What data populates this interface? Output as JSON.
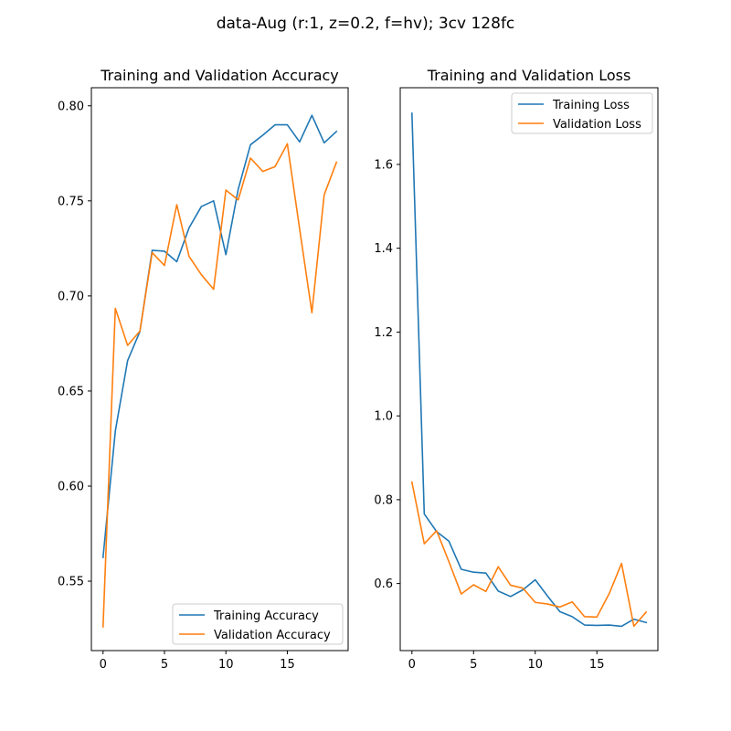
{
  "figure": {
    "suptitle": "data-Aug (r:1, z=0.2, f=hv); 3cv 128fc"
  },
  "chart_data": [
    {
      "type": "line",
      "title": "Training and Validation Accuracy",
      "xlabel": "",
      "ylabel": "",
      "xlim": [
        -0.95,
        19.95
      ],
      "ylim": [
        0.5135,
        0.8095
      ],
      "xticks": [
        0,
        5,
        10,
        15
      ],
      "yticks": [
        0.55,
        0.6,
        0.65,
        0.7,
        0.75,
        0.8
      ],
      "xtick_labels": [
        "0",
        "5",
        "10",
        "15"
      ],
      "ytick_labels": [
        "0.55",
        "0.60",
        "0.65",
        "0.70",
        "0.75",
        "0.80"
      ],
      "legend_position": "lower right",
      "grid": false,
      "x": [
        0,
        1,
        2,
        3,
        4,
        5,
        6,
        7,
        8,
        9,
        10,
        11,
        12,
        13,
        14,
        15,
        16,
        17,
        18,
        19
      ],
      "series": [
        {
          "name": "Training Accuracy",
          "color": "#1f77b4",
          "values": [
            0.5625,
            0.629,
            0.666,
            0.6813,
            0.724,
            0.7235,
            0.718,
            0.7358,
            0.747,
            0.75,
            0.7217,
            0.756,
            0.7795,
            0.7845,
            0.79,
            0.79,
            0.781,
            0.795,
            0.7805,
            0.7865
          ]
        },
        {
          "name": "Validation Accuracy",
          "color": "#ff7f0e",
          "values": [
            0.526,
            0.6935,
            0.674,
            0.6815,
            0.7228,
            0.716,
            0.748,
            0.7208,
            0.7112,
            0.7035,
            0.7557,
            0.7505,
            0.7725,
            0.7655,
            0.768,
            0.78,
            0.7353,
            0.6912,
            0.7532,
            0.7703
          ]
        }
      ]
    },
    {
      "type": "line",
      "title": "Training and Validation Loss",
      "xlabel": "",
      "ylabel": "",
      "xlim": [
        -0.95,
        19.95
      ],
      "ylim": [
        0.44,
        1.783
      ],
      "xticks": [
        0,
        5,
        10,
        15
      ],
      "yticks": [
        0.6,
        0.8,
        1.0,
        1.2,
        1.4,
        1.6
      ],
      "xtick_labels": [
        "0",
        "5",
        "10",
        "15"
      ],
      "ytick_labels": [
        "0.6",
        "0.8",
        "1.0",
        "1.2",
        "1.4",
        "1.6"
      ],
      "legend_position": "upper right",
      "grid": false,
      "x": [
        0,
        1,
        2,
        3,
        4,
        5,
        6,
        7,
        8,
        9,
        10,
        11,
        12,
        13,
        14,
        15,
        16,
        17,
        18,
        19
      ],
      "series": [
        {
          "name": "Training Loss",
          "color": "#1f77b4",
          "values": [
            1.722,
            0.766,
            0.724,
            0.701,
            0.634,
            0.627,
            0.625,
            0.582,
            0.569,
            0.585,
            0.609,
            0.57,
            0.533,
            0.521,
            0.501,
            0.5,
            0.501,
            0.498,
            0.515,
            0.507
          ]
        },
        {
          "name": "Validation Loss",
          "color": "#ff7f0e",
          "values": [
            0.842,
            0.695,
            0.726,
            0.652,
            0.575,
            0.597,
            0.581,
            0.64,
            0.596,
            0.589,
            0.555,
            0.551,
            0.544,
            0.556,
            0.521,
            0.52,
            0.576,
            0.648,
            0.498,
            0.532
          ]
        }
      ]
    }
  ]
}
